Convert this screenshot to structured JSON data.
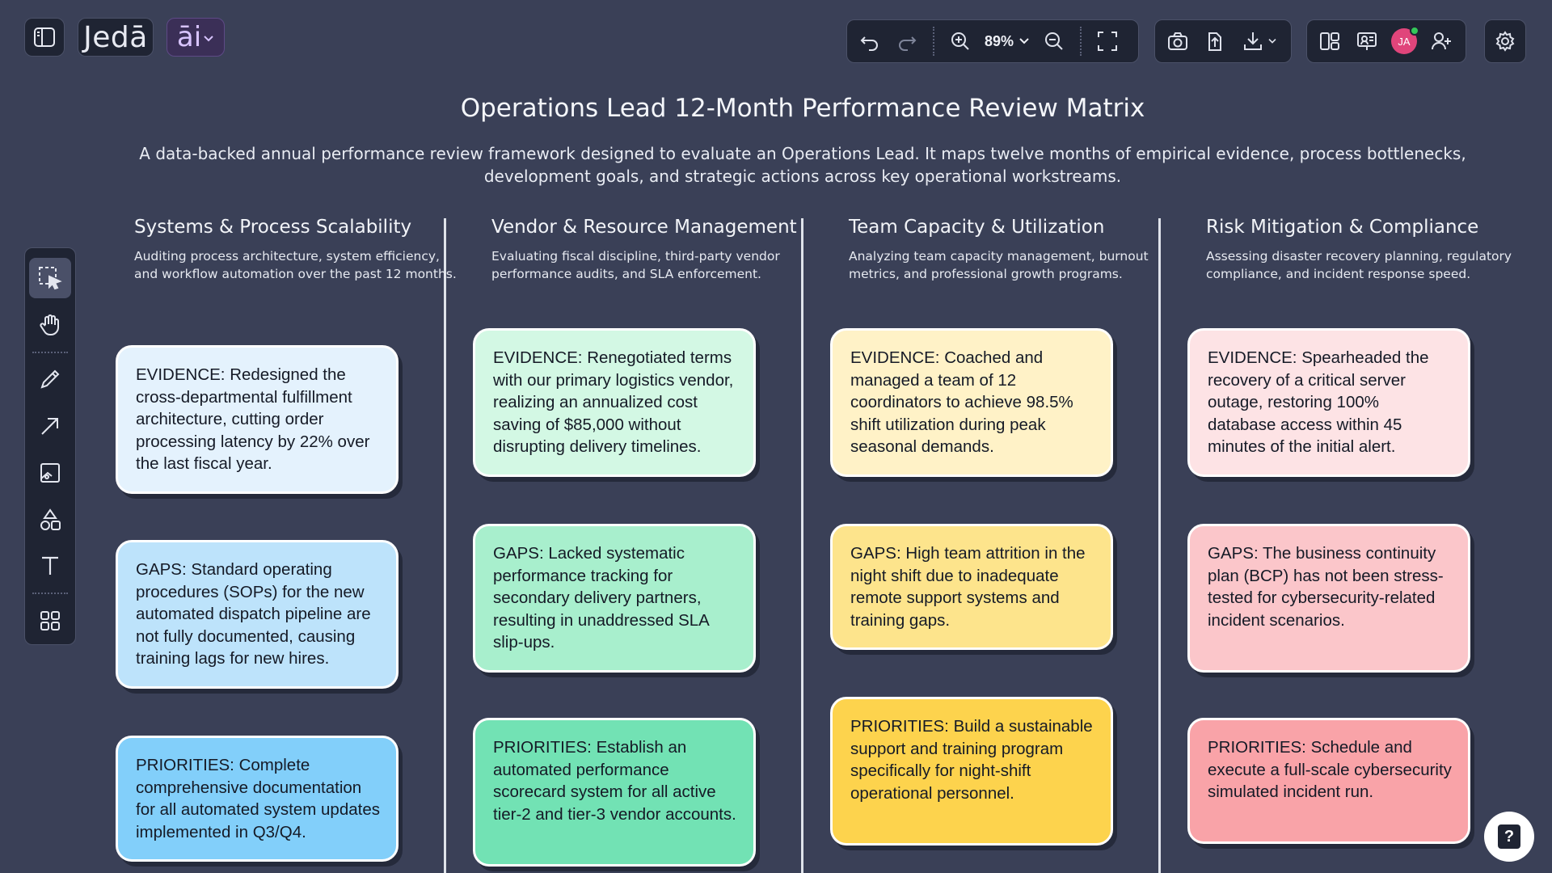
{
  "app": {
    "brand": "Jedā",
    "ai_label": "āi"
  },
  "toolbar": {
    "zoom_level": "89%",
    "user_initials": "JA"
  },
  "page": {
    "title": "Operations Lead 12-Month Performance Review Matrix",
    "subtitle": "A data-backed annual performance review framework designed to evaluate an Operations Lead. It maps twelve months of empirical evidence, process bottlenecks, development goals, and strategic actions across key operational workstreams."
  },
  "columns": [
    {
      "title": "Systems & Process Scalability",
      "description": "Auditing process architecture, system efficiency, and workflow automation over the past 12 months.",
      "cards": [
        {
          "text": "EVIDENCE: Redesigned the cross-departmental fulfillment architecture, cutting order processing latency by 22% over the last fiscal year.",
          "color": "#e4f2fd"
        },
        {
          "text": "GAPS: Standard operating procedures (SOPs) for the new automated dispatch pipeline are not fully documented, causing training lags for new hires.",
          "color": "#bde3fb"
        },
        {
          "text": "PRIORITIES: Complete comprehensive documentation for all automated system updates implemented in Q3/Q4.",
          "color": "#82cffa"
        }
      ]
    },
    {
      "title": "Vendor & Resource Management",
      "description": "Evaluating fiscal discipline, third-party vendor performance audits, and SLA enforcement.",
      "cards": [
        {
          "text": "EVIDENCE: Renegotiated terms with our primary logistics vendor, realizing an annualized cost saving of $85,000 without disrupting delivery timelines.",
          "color": "#d3f8e4"
        },
        {
          "text": "GAPS: Lacked systematic performance tracking for secondary delivery partners, resulting in unaddressed SLA slip-ups.",
          "color": "#a8efcd"
        },
        {
          "text": "PRIORITIES: Establish an automated performance scorecard system for all active tier-2 and tier-3 vendor accounts.",
          "color": "#72e2b4"
        }
      ]
    },
    {
      "title": "Team Capacity & Utilization",
      "description": "Analyzing team capacity management, burnout metrics, and professional growth programs.",
      "cards": [
        {
          "text": "EVIDENCE: Coached and managed a team of 12 coordinators to achieve 98.5% shift utilization during peak seasonal demands.",
          "color": "#fff2c7"
        },
        {
          "text": "GAPS: High team attrition in the night shift due to inadequate remote support systems and training gaps.",
          "color": "#fde48c"
        },
        {
          "text": "PRIORITIES: Build a sustainable support and training program specifically for night-shift operational personnel.",
          "color": "#fdd34d"
        }
      ]
    },
    {
      "title": "Risk Mitigation & Compliance",
      "description": "Assessing disaster recovery planning, regulatory compliance, and incident response speed.",
      "cards": [
        {
          "text": "EVIDENCE: Spearheaded the recovery of a critical server outage, restoring 100% database access within 45 minutes of the initial alert.",
          "color": "#fde3e5"
        },
        {
          "text": "GAPS: The business continuity plan (BCP) has not been stress-tested for cybersecurity-related incident scenarios.",
          "color": "#fbc6ca"
        },
        {
          "text": "PRIORITIES: Schedule and execute a full-scale cybersecurity simulated incident run.",
          "color": "#f9a3a8"
        }
      ]
    }
  ]
}
